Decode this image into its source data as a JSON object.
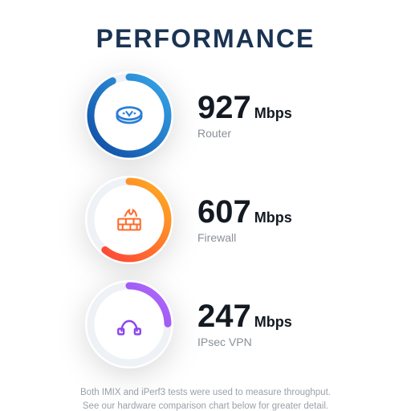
{
  "title": "PERFORMANCE",
  "ring": {
    "size": 110,
    "radius": 48,
    "stroke_width": 9,
    "track_color": "#eef1f5"
  },
  "metrics": [
    {
      "name": "router",
      "value": "927",
      "unit": "Mbps",
      "label": "Router",
      "percent": 92.7,
      "gradient": {
        "id": "g-router",
        "from": "#0f4aa3",
        "to": "#36a7ea"
      },
      "icon_color": "#2a7ed6",
      "icon": "router"
    },
    {
      "name": "firewall",
      "value": "607",
      "unit": "Mbps",
      "label": "Firewall",
      "percent": 60.7,
      "gradient": {
        "id": "g-fire",
        "from": "#ff3a3a",
        "to": "#ffb020"
      },
      "icon_color": "#ff6a2a",
      "icon": "firewall"
    },
    {
      "name": "vpn",
      "value": "247",
      "unit": "Mbps",
      "label": "IPsec VPN",
      "percent": 24.7,
      "gradient": {
        "id": "g-vpn",
        "from": "#6a2cd6",
        "to": "#b46cff"
      },
      "icon_color": "#8a46ef",
      "icon": "vpn"
    }
  ],
  "footnote_l1": "Both IMIX and iPerf3 tests were used to  measure throughput.",
  "footnote_l2": "See our hardware  comparison chart below for greater detail."
}
